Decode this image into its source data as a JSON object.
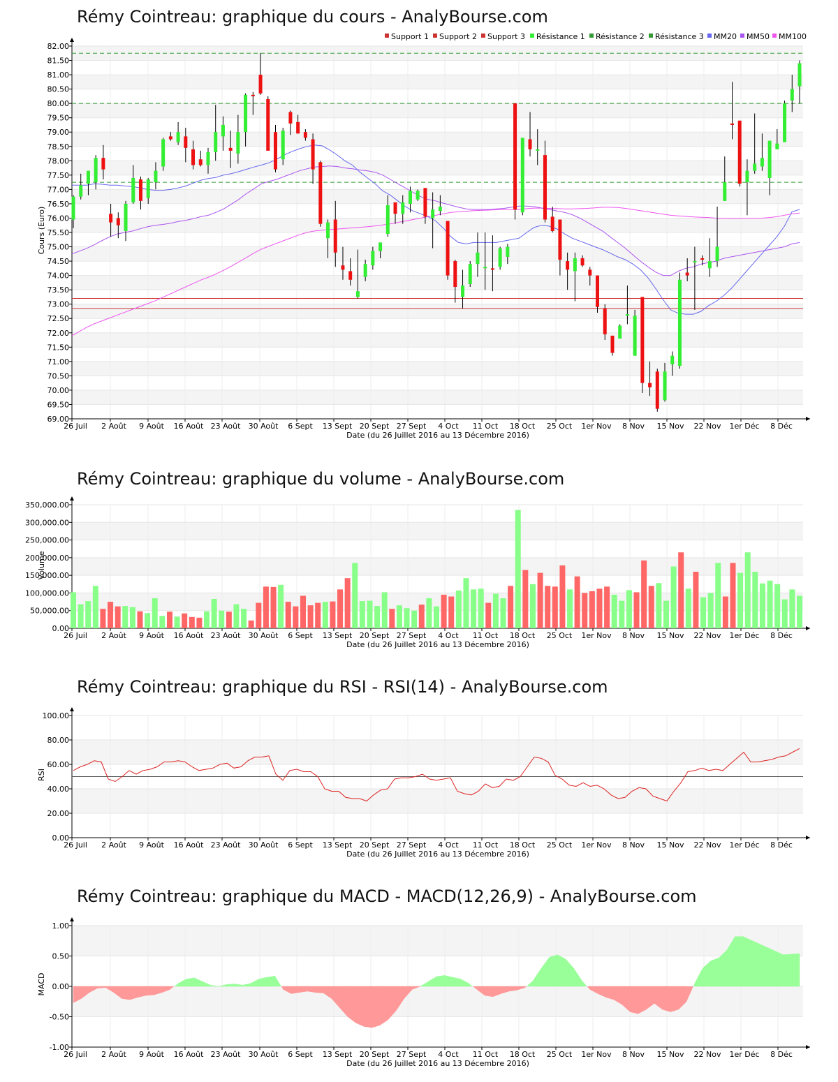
{
  "x_axis_label": "Date (du 26 Juillet 2016 au 13 Décembre 2016)",
  "x_tick_labels": [
    "26 Juil",
    "2 Août",
    "9 Août",
    "16 Août",
    "23 Août",
    "30 Août",
    "6 Sept",
    "13 Sept",
    "20 Sept",
    "27 Sept",
    "4 Oct",
    "11 Oct",
    "18 Oct",
    "25 Oct",
    "1er Nov",
    "8 Nov",
    "15 Nov",
    "22 Nov",
    "1er Déc",
    "8 Déc"
  ],
  "colors": {
    "up": "#33ee33",
    "down": "#ee1111",
    "vol_up": "#88ff88",
    "vol_down": "#ff6666",
    "macd_pos": "#99ff99",
    "macd_neg": "#ff9999",
    "support": "#cc3333",
    "resistance": "#339933",
    "mm20": "#6666ee",
    "mm50": "#aa55ee",
    "mm100": "#ee55ee",
    "rsi": "#dd2222"
  },
  "chart_data": [
    {
      "type": "candlestick",
      "title": "Rémy Cointreau: graphique du cours - AnalyBourse.com",
      "ylabel": "Cours (Euro)",
      "ylim": [
        69.0,
        82.0
      ],
      "yticks": [
        "69.00",
        "69.50",
        "70.00",
        "70.50",
        "71.00",
        "71.50",
        "72.00",
        "72.50",
        "73.00",
        "73.50",
        "74.00",
        "74.50",
        "75.00",
        "75.50",
        "76.00",
        "76.50",
        "77.00",
        "77.50",
        "78.00",
        "78.50",
        "79.00",
        "79.50",
        "80.00",
        "80.50",
        "81.00",
        "81.50",
        "82.00"
      ],
      "legend": [
        "Support 1",
        "Support 2",
        "Support 3",
        "Résistance 1",
        "Résistance 2",
        "Résistance 3",
        "MM20",
        "MM50",
        "MM100"
      ],
      "legend_placement": "top-right",
      "support_levels": [
        73.2,
        72.85
      ],
      "resistance_levels": [
        81.75,
        80.0,
        77.25
      ],
      "ohlc": [
        [
          75.95,
          76.8,
          75.65,
          76.75
        ],
        [
          76.75,
          77.55,
          76.65,
          77.15
        ],
        [
          77.2,
          77.65,
          76.8,
          77.65
        ],
        [
          77.25,
          78.2,
          77.0,
          78.1
        ],
        [
          78.1,
          78.55,
          77.35,
          77.7
        ],
        [
          76.15,
          76.5,
          75.35,
          75.85
        ],
        [
          76.0,
          76.2,
          75.3,
          75.75
        ],
        [
          75.55,
          76.6,
          75.2,
          76.5
        ],
        [
          76.55,
          77.85,
          76.5,
          77.4
        ],
        [
          77.35,
          77.45,
          76.3,
          76.6
        ],
        [
          76.7,
          77.4,
          76.5,
          77.35
        ],
        [
          77.25,
          77.95,
          77.0,
          77.65
        ],
        [
          77.8,
          78.8,
          77.65,
          78.75
        ],
        [
          78.85,
          79.0,
          78.7,
          78.75
        ],
        [
          78.65,
          79.35,
          78.55,
          79.0
        ],
        [
          78.85,
          79.15,
          77.95,
          78.45
        ],
        [
          78.4,
          78.7,
          77.7,
          77.85
        ],
        [
          78.05,
          78.35,
          77.8,
          77.85
        ],
        [
          77.85,
          78.45,
          77.55,
          78.3
        ],
        [
          78.3,
          79.95,
          78.0,
          79.0
        ],
        [
          78.85,
          79.55,
          78.35,
          79.25
        ],
        [
          78.45,
          79.05,
          77.75,
          78.35
        ],
        [
          78.25,
          79.6,
          77.9,
          79.0
        ],
        [
          79.0,
          80.35,
          78.5,
          80.3
        ],
        [
          80.3,
          80.4,
          79.6,
          80.25
        ],
        [
          81.0,
          81.75,
          80.3,
          80.35
        ],
        [
          80.15,
          80.25,
          78.4,
          78.35
        ],
        [
          79.0,
          79.25,
          77.6,
          77.7
        ],
        [
          78.05,
          79.15,
          77.85,
          79.05
        ],
        [
          79.7,
          79.75,
          78.9,
          79.3
        ],
        [
          79.35,
          79.6,
          78.95,
          78.95
        ],
        [
          79.0,
          79.1,
          78.7,
          78.8
        ],
        [
          78.75,
          78.95,
          77.2,
          77.7
        ],
        [
          77.95,
          78.0,
          75.7,
          75.8
        ],
        [
          75.3,
          75.95,
          74.6,
          75.85
        ],
        [
          75.95,
          76.6,
          74.3,
          74.8
        ],
        [
          74.35,
          75.0,
          73.85,
          74.2
        ],
        [
          74.15,
          74.6,
          73.65,
          73.85
        ],
        [
          73.25,
          74.9,
          73.2,
          73.45
        ],
        [
          73.95,
          74.55,
          73.8,
          74.4
        ],
        [
          74.35,
          75.0,
          74.2,
          74.85
        ],
        [
          74.85,
          75.15,
          74.6,
          75.15
        ],
        [
          75.45,
          76.8,
          75.35,
          76.45
        ],
        [
          76.55,
          76.45,
          75.8,
          76.15
        ],
        [
          76.15,
          76.8,
          75.8,
          76.55
        ],
        [
          76.5,
          77.1,
          76.2,
          76.95
        ],
        [
          76.65,
          77.0,
          76.6,
          76.95
        ],
        [
          77.05,
          77.05,
          75.8,
          76.05
        ],
        [
          76.0,
          76.9,
          74.95,
          76.3
        ],
        [
          76.25,
          76.8,
          76.1,
          76.4
        ],
        [
          75.9,
          75.9,
          73.85,
          74.0
        ],
        [
          74.5,
          74.55,
          73.05,
          73.6
        ],
        [
          73.25,
          74.2,
          72.85,
          73.65
        ],
        [
          73.7,
          74.5,
          73.6,
          74.4
        ],
        [
          74.4,
          75.5,
          73.95,
          74.8
        ],
        [
          74.3,
          75.5,
          73.5,
          74.3
        ],
        [
          74.25,
          75.4,
          73.45,
          74.2
        ],
        [
          74.3,
          75.0,
          74.2,
          74.95
        ],
        [
          74.65,
          75.1,
          74.4,
          75.0
        ],
        [
          80.0,
          80.0,
          75.95,
          76.3
        ],
        [
          76.2,
          78.8,
          76.1,
          78.8
        ],
        [
          78.75,
          79.7,
          78.15,
          78.4
        ],
        [
          78.35,
          79.1,
          77.85,
          78.4
        ],
        [
          78.2,
          78.7,
          75.85,
          75.95
        ],
        [
          76.05,
          76.4,
          75.5,
          75.55
        ],
        [
          75.95,
          75.95,
          74.0,
          74.55
        ],
        [
          74.5,
          74.8,
          73.5,
          74.2
        ],
        [
          74.15,
          74.8,
          73.1,
          74.6
        ],
        [
          74.6,
          74.7,
          74.3,
          74.35
        ],
        [
          74.2,
          74.3,
          73.65,
          74.0
        ],
        [
          74.0,
          74.0,
          72.7,
          72.9
        ],
        [
          72.85,
          73.0,
          71.75,
          71.95
        ],
        [
          71.9,
          71.9,
          71.2,
          71.3
        ],
        [
          71.8,
          72.3,
          71.8,
          72.25
        ],
        [
          72.65,
          73.65,
          72.3,
          72.65
        ],
        [
          71.2,
          72.8,
          71.2,
          72.6
        ],
        [
          73.25,
          73.25,
          69.9,
          70.25
        ],
        [
          70.25,
          71.0,
          69.8,
          70.1
        ],
        [
          70.65,
          70.75,
          69.25,
          69.35
        ],
        [
          69.65,
          70.95,
          69.6,
          70.65
        ],
        [
          70.9,
          71.35,
          70.5,
          71.2
        ],
        [
          70.85,
          74.1,
          70.75,
          73.85
        ],
        [
          74.1,
          74.6,
          73.8,
          74.0
        ],
        [
          74.45,
          75.0,
          72.8,
          74.5
        ],
        [
          74.6,
          74.7,
          74.35,
          74.55
        ],
        [
          74.25,
          75.3,
          73.95,
          74.5
        ],
        [
          74.5,
          76.4,
          74.3,
          75.0
        ],
        [
          76.6,
          78.15,
          76.6,
          77.25
        ],
        [
          79.3,
          80.75,
          78.75,
          79.25
        ],
        [
          79.4,
          79.4,
          77.1,
          77.2
        ],
        [
          77.25,
          78.05,
          76.1,
          77.65
        ],
        [
          77.65,
          79.65,
          77.55,
          77.9
        ],
        [
          77.8,
          78.95,
          77.65,
          78.1
        ],
        [
          77.4,
          78.65,
          76.8,
          78.7
        ],
        [
          78.4,
          79.1,
          78.4,
          78.6
        ],
        [
          78.65,
          80.1,
          78.65,
          80.0
        ],
        [
          80.1,
          81.0,
          79.7,
          80.5
        ],
        [
          80.6,
          81.5,
          80.0,
          81.4
        ]
      ],
      "mm20": [
        77.15,
        77.15,
        77.15,
        77.2,
        77.18,
        77.15,
        77.15,
        77.12,
        77.1,
        77.05,
        77.0,
        76.97,
        76.97,
        77.0,
        77.05,
        77.12,
        77.22,
        77.32,
        77.38,
        77.42,
        77.5,
        77.55,
        77.62,
        77.7,
        77.78,
        77.85,
        77.93,
        78.05,
        78.2,
        78.32,
        78.42,
        78.5,
        78.55,
        78.52,
        78.38,
        78.2,
        78.0,
        77.85,
        77.6,
        77.4,
        77.2,
        76.95,
        76.8,
        76.6,
        76.4,
        76.25,
        76.15,
        76.05,
        75.9,
        75.65,
        75.35,
        75.15,
        75.1,
        75.15,
        75.15,
        75.15,
        75.15,
        75.2,
        75.25,
        75.3,
        75.5,
        75.68,
        75.75,
        75.72,
        75.62,
        75.45,
        75.3,
        75.2,
        75.1,
        75.0,
        74.9,
        74.78,
        74.65,
        74.55,
        74.4,
        74.2,
        73.92,
        73.55,
        73.15,
        72.8,
        72.68,
        72.65,
        72.65,
        72.75,
        72.95,
        73.1,
        73.3,
        73.55,
        73.85,
        74.15,
        74.45,
        74.75,
        75.05,
        75.35,
        75.72,
        76.22,
        76.3
      ],
      "mm50": [
        74.75,
        74.85,
        74.95,
        75.08,
        75.22,
        75.35,
        75.45,
        75.5,
        75.55,
        75.63,
        75.7,
        75.75,
        75.78,
        75.82,
        75.88,
        75.92,
        75.98,
        76.05,
        76.1,
        76.2,
        76.32,
        76.48,
        76.65,
        76.85,
        77.02,
        77.2,
        77.28,
        77.35,
        77.45,
        77.55,
        77.65,
        77.72,
        77.78,
        77.8,
        77.82,
        77.8,
        77.75,
        77.72,
        77.68,
        77.65,
        77.6,
        77.5,
        77.35,
        77.2,
        77.05,
        76.9,
        76.75,
        76.65,
        76.6,
        76.52,
        76.45,
        76.38,
        76.32,
        76.3,
        76.3,
        76.3,
        76.32,
        76.34,
        76.38,
        76.42,
        76.42,
        76.4,
        76.35,
        76.3,
        76.25,
        76.2,
        76.12,
        76.0,
        75.85,
        75.7,
        75.55,
        75.35,
        75.15,
        74.95,
        74.72,
        74.5,
        74.3,
        74.12,
        74.0,
        74.0,
        74.15,
        74.25,
        74.3,
        74.4,
        74.45,
        74.5,
        74.6,
        74.65,
        74.7,
        74.75,
        74.8,
        74.85,
        74.9,
        74.95,
        75.0,
        75.1,
        75.15
      ],
      "mm100": [
        71.9,
        72.05,
        72.2,
        72.32,
        72.42,
        72.52,
        72.62,
        72.72,
        72.82,
        72.92,
        73.02,
        73.12,
        73.24,
        73.36,
        73.48,
        73.6,
        73.72,
        73.84,
        73.94,
        74.05,
        74.18,
        74.32,
        74.47,
        74.62,
        74.78,
        74.92,
        75.02,
        75.12,
        75.22,
        75.32,
        75.42,
        75.5,
        75.55,
        75.58,
        75.6,
        75.62,
        75.64,
        75.66,
        75.68,
        75.7,
        75.73,
        75.76,
        75.8,
        75.85,
        75.9,
        75.95,
        76.0,
        76.05,
        76.1,
        76.15,
        76.2,
        76.22,
        76.24,
        76.26,
        76.27,
        76.28,
        76.29,
        76.3,
        76.3,
        76.3,
        76.33,
        76.35,
        76.35,
        76.34,
        76.33,
        76.32,
        76.32,
        76.33,
        76.34,
        76.36,
        76.38,
        76.38,
        76.37,
        76.34,
        76.3,
        76.26,
        76.22,
        76.18,
        76.14,
        76.1,
        76.08,
        76.06,
        76.04,
        76.03,
        76.02,
        76.0,
        76.0,
        75.99,
        75.99,
        76.0,
        76.0,
        76.0,
        76.02,
        76.05,
        76.1,
        76.15,
        76.18
      ]
    },
    {
      "type": "bar",
      "title": "Rémy Cointreau: graphique du volume - AnalyBourse.com",
      "ylabel": "Volume",
      "ylim": [
        0,
        350000
      ],
      "yticks": [
        "0.00",
        "50,000.00",
        "100,000.00",
        "150,000.00",
        "200,000.00",
        "250,000.00",
        "300,000.00",
        "350,000.00"
      ],
      "values": [
        102000,
        68000,
        77000,
        120000,
        55000,
        75000,
        62000,
        63000,
        60000,
        48000,
        43000,
        85000,
        35000,
        47000,
        33000,
        42000,
        32000,
        30000,
        48000,
        83000,
        50000,
        47000,
        68000,
        55000,
        22000,
        72000,
        118000,
        117000,
        123000,
        75000,
        62000,
        92000,
        65000,
        72000,
        75000,
        76000,
        110000,
        142000,
        185000,
        77000,
        78000,
        63000,
        102000,
        55000,
        65000,
        57000,
        50000,
        67000,
        85000,
        62000,
        95000,
        90000,
        107000,
        142000,
        110000,
        112000,
        72000,
        98000,
        85000,
        120000,
        335000,
        165000,
        125000,
        157000,
        120000,
        118000,
        178000,
        110000,
        147000,
        100000,
        105000,
        112000,
        118000,
        95000,
        78000,
        108000,
        102000,
        192000,
        120000,
        128000,
        78000,
        175000,
        215000,
        112000,
        160000,
        88000,
        100000,
        185000,
        90000,
        185000,
        157000,
        215000,
        160000,
        127000,
        135000,
        125000,
        82000,
        110000,
        92000
      ]
    },
    {
      "type": "line",
      "title": "Rémy Cointreau: graphique du RSI - RSI(14) - AnalyBourse.com",
      "ylabel": "RSI",
      "ylim": [
        0,
        100
      ],
      "yticks": [
        "0.00",
        "20.00",
        "40.00",
        "60.00",
        "80.00",
        "100.00"
      ],
      "reference_line": 50,
      "values": [
        55,
        58,
        60,
        63,
        62,
        48,
        46,
        50,
        55,
        52,
        55,
        56,
        58,
        62,
        62,
        63,
        62,
        58,
        55,
        56,
        57,
        60,
        61,
        57,
        58,
        63,
        66,
        66,
        67,
        52,
        47,
        55,
        56,
        54,
        54,
        50,
        40,
        38,
        38,
        33,
        32,
        32,
        30,
        35,
        39,
        40,
        48,
        49,
        49,
        50,
        52,
        48,
        47,
        48,
        49,
        38,
        36,
        35,
        38,
        44,
        41,
        42,
        48,
        47,
        50,
        58,
        66,
        65,
        62,
        51,
        48,
        43,
        42,
        45,
        42,
        43,
        40,
        35,
        32,
        33,
        38,
        41,
        40,
        34,
        32,
        30,
        38,
        45,
        54,
        55,
        57,
        55,
        56,
        55,
        60,
        65,
        70,
        62,
        62,
        63,
        64,
        66,
        67,
        70,
        73
      ]
    },
    {
      "type": "area",
      "title": "Rémy Cointreau: graphique du MACD - MACD(12,26,9) - AnalyBourse.com",
      "ylabel": "MACD",
      "ylim": [
        -1.0,
        1.0
      ],
      "yticks": [
        "-1.00",
        "-0.50",
        "0.00",
        "0.50",
        "1.00"
      ],
      "values": [
        -0.27,
        -0.2,
        -0.1,
        -0.03,
        -0.02,
        -0.1,
        -0.2,
        -0.22,
        -0.18,
        -0.15,
        -0.14,
        -0.1,
        -0.05,
        0.05,
        0.12,
        0.14,
        0.08,
        0.02,
        0.0,
        0.03,
        0.04,
        0.02,
        0.05,
        0.12,
        0.15,
        0.17,
        -0.05,
        -0.12,
        -0.1,
        -0.08,
        -0.1,
        -0.11,
        -0.2,
        -0.35,
        -0.5,
        -0.6,
        -0.66,
        -0.68,
        -0.64,
        -0.55,
        -0.4,
        -0.2,
        -0.05,
        0.0,
        0.08,
        0.16,
        0.18,
        0.15,
        0.12,
        0.05,
        -0.05,
        -0.15,
        -0.17,
        -0.12,
        -0.08,
        -0.06,
        -0.02,
        0.1,
        0.3,
        0.48,
        0.52,
        0.45,
        0.3,
        0.1,
        -0.05,
        -0.12,
        -0.18,
        -0.22,
        -0.3,
        -0.42,
        -0.45,
        -0.38,
        -0.28,
        -0.38,
        -0.42,
        -0.38,
        -0.25,
        0.05,
        0.3,
        0.42,
        0.47,
        0.6,
        0.82,
        0.82,
        0.76,
        0.7,
        0.64,
        0.58,
        0.52,
        0.53,
        0.54
      ]
    }
  ]
}
